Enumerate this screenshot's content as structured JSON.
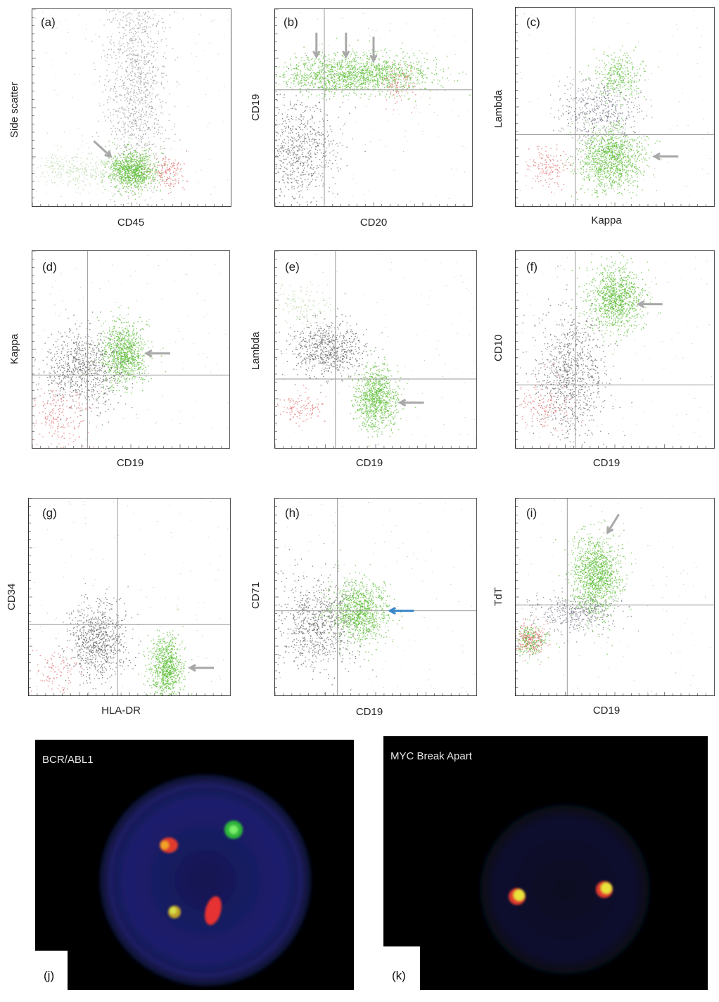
{
  "chart_data": [
    {
      "panel": "(a)",
      "type": "scatter",
      "xlabel": "CD45",
      "ylabel": "Side scatter",
      "quadrant_lines": false,
      "populations": [
        {
          "color": "#9a9a9a",
          "cx": 0.52,
          "cy": 0.62,
          "sx": 0.08,
          "sy": 0.3,
          "n": 1200
        },
        {
          "color": "#b8d9a8",
          "cx": 0.22,
          "cy": 0.18,
          "sx": 0.12,
          "sy": 0.05,
          "n": 300
        },
        {
          "color": "#5fbf3a",
          "cx": 0.5,
          "cy": 0.18,
          "sx": 0.06,
          "sy": 0.05,
          "n": 900
        },
        {
          "color": "#e07070",
          "cx": 0.68,
          "cy": 0.17,
          "sx": 0.04,
          "sy": 0.04,
          "n": 150
        }
      ],
      "arrows": [
        {
          "x": 0.31,
          "y": 0.33,
          "dir": "down-right",
          "color": "#a8a8a8"
        }
      ]
    },
    {
      "panel": "(b)",
      "type": "scatter",
      "xlabel": "CD20",
      "ylabel": "CD19",
      "quadrant_lines": true,
      "qx": 0.25,
      "qy": 0.59,
      "populations": [
        {
          "color": "#5fbf3a",
          "cx": 0.4,
          "cy": 0.67,
          "sx": 0.2,
          "sy": 0.05,
          "n": 1500
        },
        {
          "color": "#6a6a6a",
          "cx": 0.12,
          "cy": 0.3,
          "sx": 0.1,
          "sy": 0.14,
          "n": 700
        },
        {
          "color": "#e07070",
          "cx": 0.62,
          "cy": 0.62,
          "sx": 0.04,
          "sy": 0.05,
          "n": 100
        }
      ],
      "arrows": [
        {
          "x": 0.21,
          "y": 0.88,
          "dir": "down",
          "color": "#a8a8a8"
        },
        {
          "x": 0.36,
          "y": 0.88,
          "dir": "down",
          "color": "#a8a8a8"
        },
        {
          "x": 0.5,
          "y": 0.86,
          "dir": "down",
          "color": "#a8a8a8"
        }
      ]
    },
    {
      "panel": "(c)",
      "type": "scatter",
      "xlabel": "Kappa",
      "ylabel": "Lambda",
      "quadrant_lines": true,
      "qx": 0.3,
      "qy": 0.36,
      "populations": [
        {
          "color": "#5fbf3a",
          "cx": 0.48,
          "cy": 0.24,
          "sx": 0.08,
          "sy": 0.08,
          "n": 1100
        },
        {
          "color": "#7a7a8a",
          "cx": 0.42,
          "cy": 0.48,
          "sx": 0.1,
          "sy": 0.08,
          "n": 500
        },
        {
          "color": "#5fbf3a",
          "cx": 0.52,
          "cy": 0.66,
          "sx": 0.06,
          "sy": 0.06,
          "n": 300
        },
        {
          "color": "#e07070",
          "cx": 0.16,
          "cy": 0.2,
          "sx": 0.06,
          "sy": 0.05,
          "n": 150
        }
      ],
      "arrows": [
        {
          "x": 0.82,
          "y": 0.25,
          "dir": "left",
          "color": "#a8a8a8"
        }
      ]
    },
    {
      "panel": "(d)",
      "type": "scatter",
      "xlabel": "CD19",
      "ylabel": "Kappa",
      "quadrant_lines": true,
      "qx": 0.28,
      "qy": 0.37,
      "populations": [
        {
          "color": "#5fbf3a",
          "cx": 0.46,
          "cy": 0.48,
          "sx": 0.06,
          "sy": 0.08,
          "n": 900
        },
        {
          "color": "#6a6a6a",
          "cx": 0.26,
          "cy": 0.4,
          "sx": 0.1,
          "sy": 0.1,
          "n": 800
        },
        {
          "color": "#e07070",
          "cx": 0.12,
          "cy": 0.16,
          "sx": 0.08,
          "sy": 0.08,
          "n": 200
        }
      ],
      "arrows": [
        {
          "x": 0.7,
          "y": 0.48,
          "dir": "left",
          "color": "#a8a8a8"
        }
      ]
    },
    {
      "panel": "(e)",
      "type": "scatter",
      "xlabel": "CD19",
      "ylabel": "Lambda",
      "quadrant_lines": true,
      "qx": 0.3,
      "qy": 0.35,
      "populations": [
        {
          "color": "#5fbf3a",
          "cx": 0.5,
          "cy": 0.25,
          "sx": 0.05,
          "sy": 0.08,
          "n": 900
        },
        {
          "color": "#6a6a6a",
          "cx": 0.26,
          "cy": 0.5,
          "sx": 0.09,
          "sy": 0.07,
          "n": 700
        },
        {
          "color": "#b8d9a8",
          "cx": 0.12,
          "cy": 0.72,
          "sx": 0.08,
          "sy": 0.05,
          "n": 150
        },
        {
          "color": "#e07070",
          "cx": 0.12,
          "cy": 0.2,
          "sx": 0.06,
          "sy": 0.04,
          "n": 120
        }
      ],
      "arrows": [
        {
          "x": 0.74,
          "y": 0.23,
          "dir": "left",
          "color": "#a8a8a8"
        }
      ]
    },
    {
      "panel": "(f)",
      "type": "scatter",
      "xlabel": "CD19",
      "ylabel": "CD10",
      "quadrant_lines": true,
      "qx": 0.3,
      "qy": 0.32,
      "populations": [
        {
          "color": "#5fbf3a",
          "cx": 0.5,
          "cy": 0.76,
          "sx": 0.07,
          "sy": 0.08,
          "n": 1000
        },
        {
          "color": "#6a6a6a",
          "cx": 0.28,
          "cy": 0.38,
          "sx": 0.09,
          "sy": 0.16,
          "n": 900
        },
        {
          "color": "#e07070",
          "cx": 0.14,
          "cy": 0.22,
          "sx": 0.07,
          "sy": 0.07,
          "n": 150
        }
      ],
      "arrows": [
        {
          "x": 0.74,
          "y": 0.73,
          "dir": "left",
          "color": "#a8a8a8"
        }
      ]
    },
    {
      "panel": "(g)",
      "type": "scatter",
      "xlabel": "HLA-DR",
      "ylabel": "CD34",
      "quadrant_lines": true,
      "qx": 0.44,
      "qy": 0.36,
      "populations": [
        {
          "color": "#5fbf3a",
          "cx": 0.68,
          "cy": 0.14,
          "sx": 0.04,
          "sy": 0.08,
          "n": 800
        },
        {
          "color": "#6a6a6a",
          "cx": 0.34,
          "cy": 0.28,
          "sx": 0.07,
          "sy": 0.1,
          "n": 800
        },
        {
          "color": "#e07070",
          "cx": 0.14,
          "cy": 0.12,
          "sx": 0.05,
          "sy": 0.06,
          "n": 100
        }
      ],
      "arrows": [
        {
          "x": 0.92,
          "y": 0.14,
          "dir": "left",
          "color": "#a8a8a8"
        }
      ]
    },
    {
      "panel": "(h)",
      "type": "scatter",
      "xlabel": "CD19",
      "ylabel": "CD71",
      "quadrant_lines": true,
      "qx": 0.31,
      "qy": 0.43,
      "populations": [
        {
          "color": "#5fbf3a",
          "cx": 0.42,
          "cy": 0.43,
          "sx": 0.07,
          "sy": 0.08,
          "n": 1000
        },
        {
          "color": "#6a6a6a",
          "cx": 0.2,
          "cy": 0.36,
          "sx": 0.1,
          "sy": 0.12,
          "n": 800
        }
      ],
      "arrows": [
        {
          "x": 0.69,
          "y": 0.43,
          "dir": "left",
          "color": "#3a86c8"
        }
      ]
    },
    {
      "panel": "(i)",
      "type": "scatter",
      "xlabel": "CD19",
      "ylabel": "TdT",
      "quadrant_lines": true,
      "qx": 0.26,
      "qy": 0.46,
      "populations": [
        {
          "color": "#5fbf3a",
          "cx": 0.4,
          "cy": 0.6,
          "sx": 0.06,
          "sy": 0.1,
          "n": 1200
        },
        {
          "color": "#7a7a8a",
          "cx": 0.3,
          "cy": 0.42,
          "sx": 0.12,
          "sy": 0.05,
          "n": 400
        },
        {
          "color": "#e07070",
          "cx": 0.07,
          "cy": 0.29,
          "sx": 0.04,
          "sy": 0.04,
          "n": 250
        },
        {
          "color": "#5fbf3a",
          "cx": 0.08,
          "cy": 0.28,
          "sx": 0.04,
          "sy": 0.04,
          "n": 200
        }
      ],
      "arrows": [
        {
          "x": 0.52,
          "y": 0.92,
          "dir": "down-left",
          "color": "#a8a8a8"
        }
      ]
    }
  ],
  "fish_panels": [
    {
      "panel": "(j)",
      "title": "BCR/ABL1",
      "nucleus_color": "#1c1f6e",
      "signals": [
        {
          "color": "#e13a2e",
          "core": "#f1a228",
          "label": "fusion"
        },
        {
          "color": "#2eb83a",
          "label": "green"
        },
        {
          "color": "#e13a2e",
          "core": "#b4d23a",
          "label": "fusion"
        },
        {
          "color": "#e63030",
          "label": "red"
        }
      ]
    },
    {
      "panel": "(k)",
      "title": "MYC Break Apart",
      "nucleus_color": "#0d0e2a",
      "signals": [
        {
          "color": "#e13a2e",
          "core": "#e8e23a",
          "label": "fusion"
        },
        {
          "color": "#e13a2e",
          "core": "#e8e23a",
          "label": "fusion"
        }
      ]
    }
  ]
}
